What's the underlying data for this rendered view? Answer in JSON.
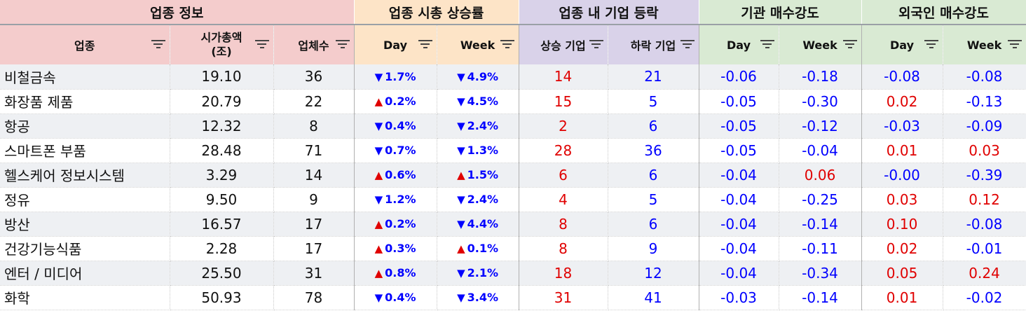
{
  "groups": [
    {
      "label": "업종 정보"
    },
    {
      "label": "업종 시총 상승률"
    },
    {
      "label": "업종 내 기업 등락"
    },
    {
      "label": "기관 매수강도"
    },
    {
      "label": "외국인 매수강도"
    }
  ],
  "columns": {
    "sector": "업종",
    "mcap_line1": "시가총액",
    "mcap_line2": "(조)",
    "count": "업체수",
    "cap_day": "Day",
    "cap_week": "Week",
    "up": "상승 기업",
    "down": "하락 기업",
    "inst_day": "Day",
    "inst_week": "Week",
    "for_day": "Day",
    "for_week": "Week"
  },
  "colors": {
    "positive": "#e00000",
    "negative": "#0000ff"
  },
  "rows": [
    {
      "sector": "비철금속",
      "mcap": "19.10",
      "count": "36",
      "day_dir": "down",
      "day": "1.7%",
      "week_dir": "down",
      "week": "4.9%",
      "up": "14",
      "down": "21",
      "inst_day": "-0.06",
      "inst_week": "-0.18",
      "for_day": "-0.08",
      "for_week": "-0.08"
    },
    {
      "sector": "화장품 제품",
      "mcap": "20.79",
      "count": "22",
      "day_dir": "up",
      "day": "0.2%",
      "week_dir": "down",
      "week": "4.5%",
      "up": "15",
      "down": "5",
      "inst_day": "-0.05",
      "inst_week": "-0.30",
      "for_day": "0.02",
      "for_week": "-0.13"
    },
    {
      "sector": "항공",
      "mcap": "12.32",
      "count": "8",
      "day_dir": "down",
      "day": "0.4%",
      "week_dir": "down",
      "week": "2.4%",
      "up": "2",
      "down": "6",
      "inst_day": "-0.05",
      "inst_week": "-0.12",
      "for_day": "-0.03",
      "for_week": "-0.09"
    },
    {
      "sector": "스마트폰 부품",
      "mcap": "28.48",
      "count": "71",
      "day_dir": "down",
      "day": "0.7%",
      "week_dir": "down",
      "week": "1.3%",
      "up": "28",
      "down": "36",
      "inst_day": "-0.05",
      "inst_week": "-0.04",
      "for_day": "0.01",
      "for_week": "0.03"
    },
    {
      "sector": "헬스케어 정보시스템",
      "mcap": "3.29",
      "count": "14",
      "day_dir": "up",
      "day": "0.6%",
      "week_dir": "up",
      "week": "1.5%",
      "up": "6",
      "down": "6",
      "inst_day": "-0.04",
      "inst_week": "0.06",
      "for_day": "-0.00",
      "for_week": "-0.39"
    },
    {
      "sector": "정유",
      "mcap": "9.50",
      "count": "9",
      "day_dir": "down",
      "day": "1.2%",
      "week_dir": "down",
      "week": "2.4%",
      "up": "4",
      "down": "5",
      "inst_day": "-0.04",
      "inst_week": "-0.25",
      "for_day": "0.03",
      "for_week": "0.12"
    },
    {
      "sector": "방산",
      "mcap": "16.57",
      "count": "17",
      "day_dir": "up",
      "day": "0.2%",
      "week_dir": "down",
      "week": "4.4%",
      "up": "8",
      "down": "6",
      "inst_day": "-0.04",
      "inst_week": "-0.14",
      "for_day": "0.10",
      "for_week": "-0.08"
    },
    {
      "sector": "건강기능식품",
      "mcap": "2.28",
      "count": "17",
      "day_dir": "up",
      "day": "0.3%",
      "week_dir": "up",
      "week": "0.1%",
      "up": "8",
      "down": "9",
      "inst_day": "-0.04",
      "inst_week": "-0.11",
      "for_day": "0.02",
      "for_week": "-0.01"
    },
    {
      "sector": "엔터 / 미디어",
      "mcap": "25.50",
      "count": "31",
      "day_dir": "up",
      "day": "0.8%",
      "week_dir": "down",
      "week": "2.1%",
      "up": "18",
      "down": "12",
      "inst_day": "-0.04",
      "inst_week": "-0.34",
      "for_day": "0.05",
      "for_week": "0.24"
    },
    {
      "sector": "화학",
      "mcap": "50.93",
      "count": "78",
      "day_dir": "down",
      "day": "0.4%",
      "week_dir": "down",
      "week": "3.4%",
      "up": "31",
      "down": "41",
      "inst_day": "-0.03",
      "inst_week": "-0.14",
      "for_day": "0.01",
      "for_week": "-0.02"
    }
  ]
}
